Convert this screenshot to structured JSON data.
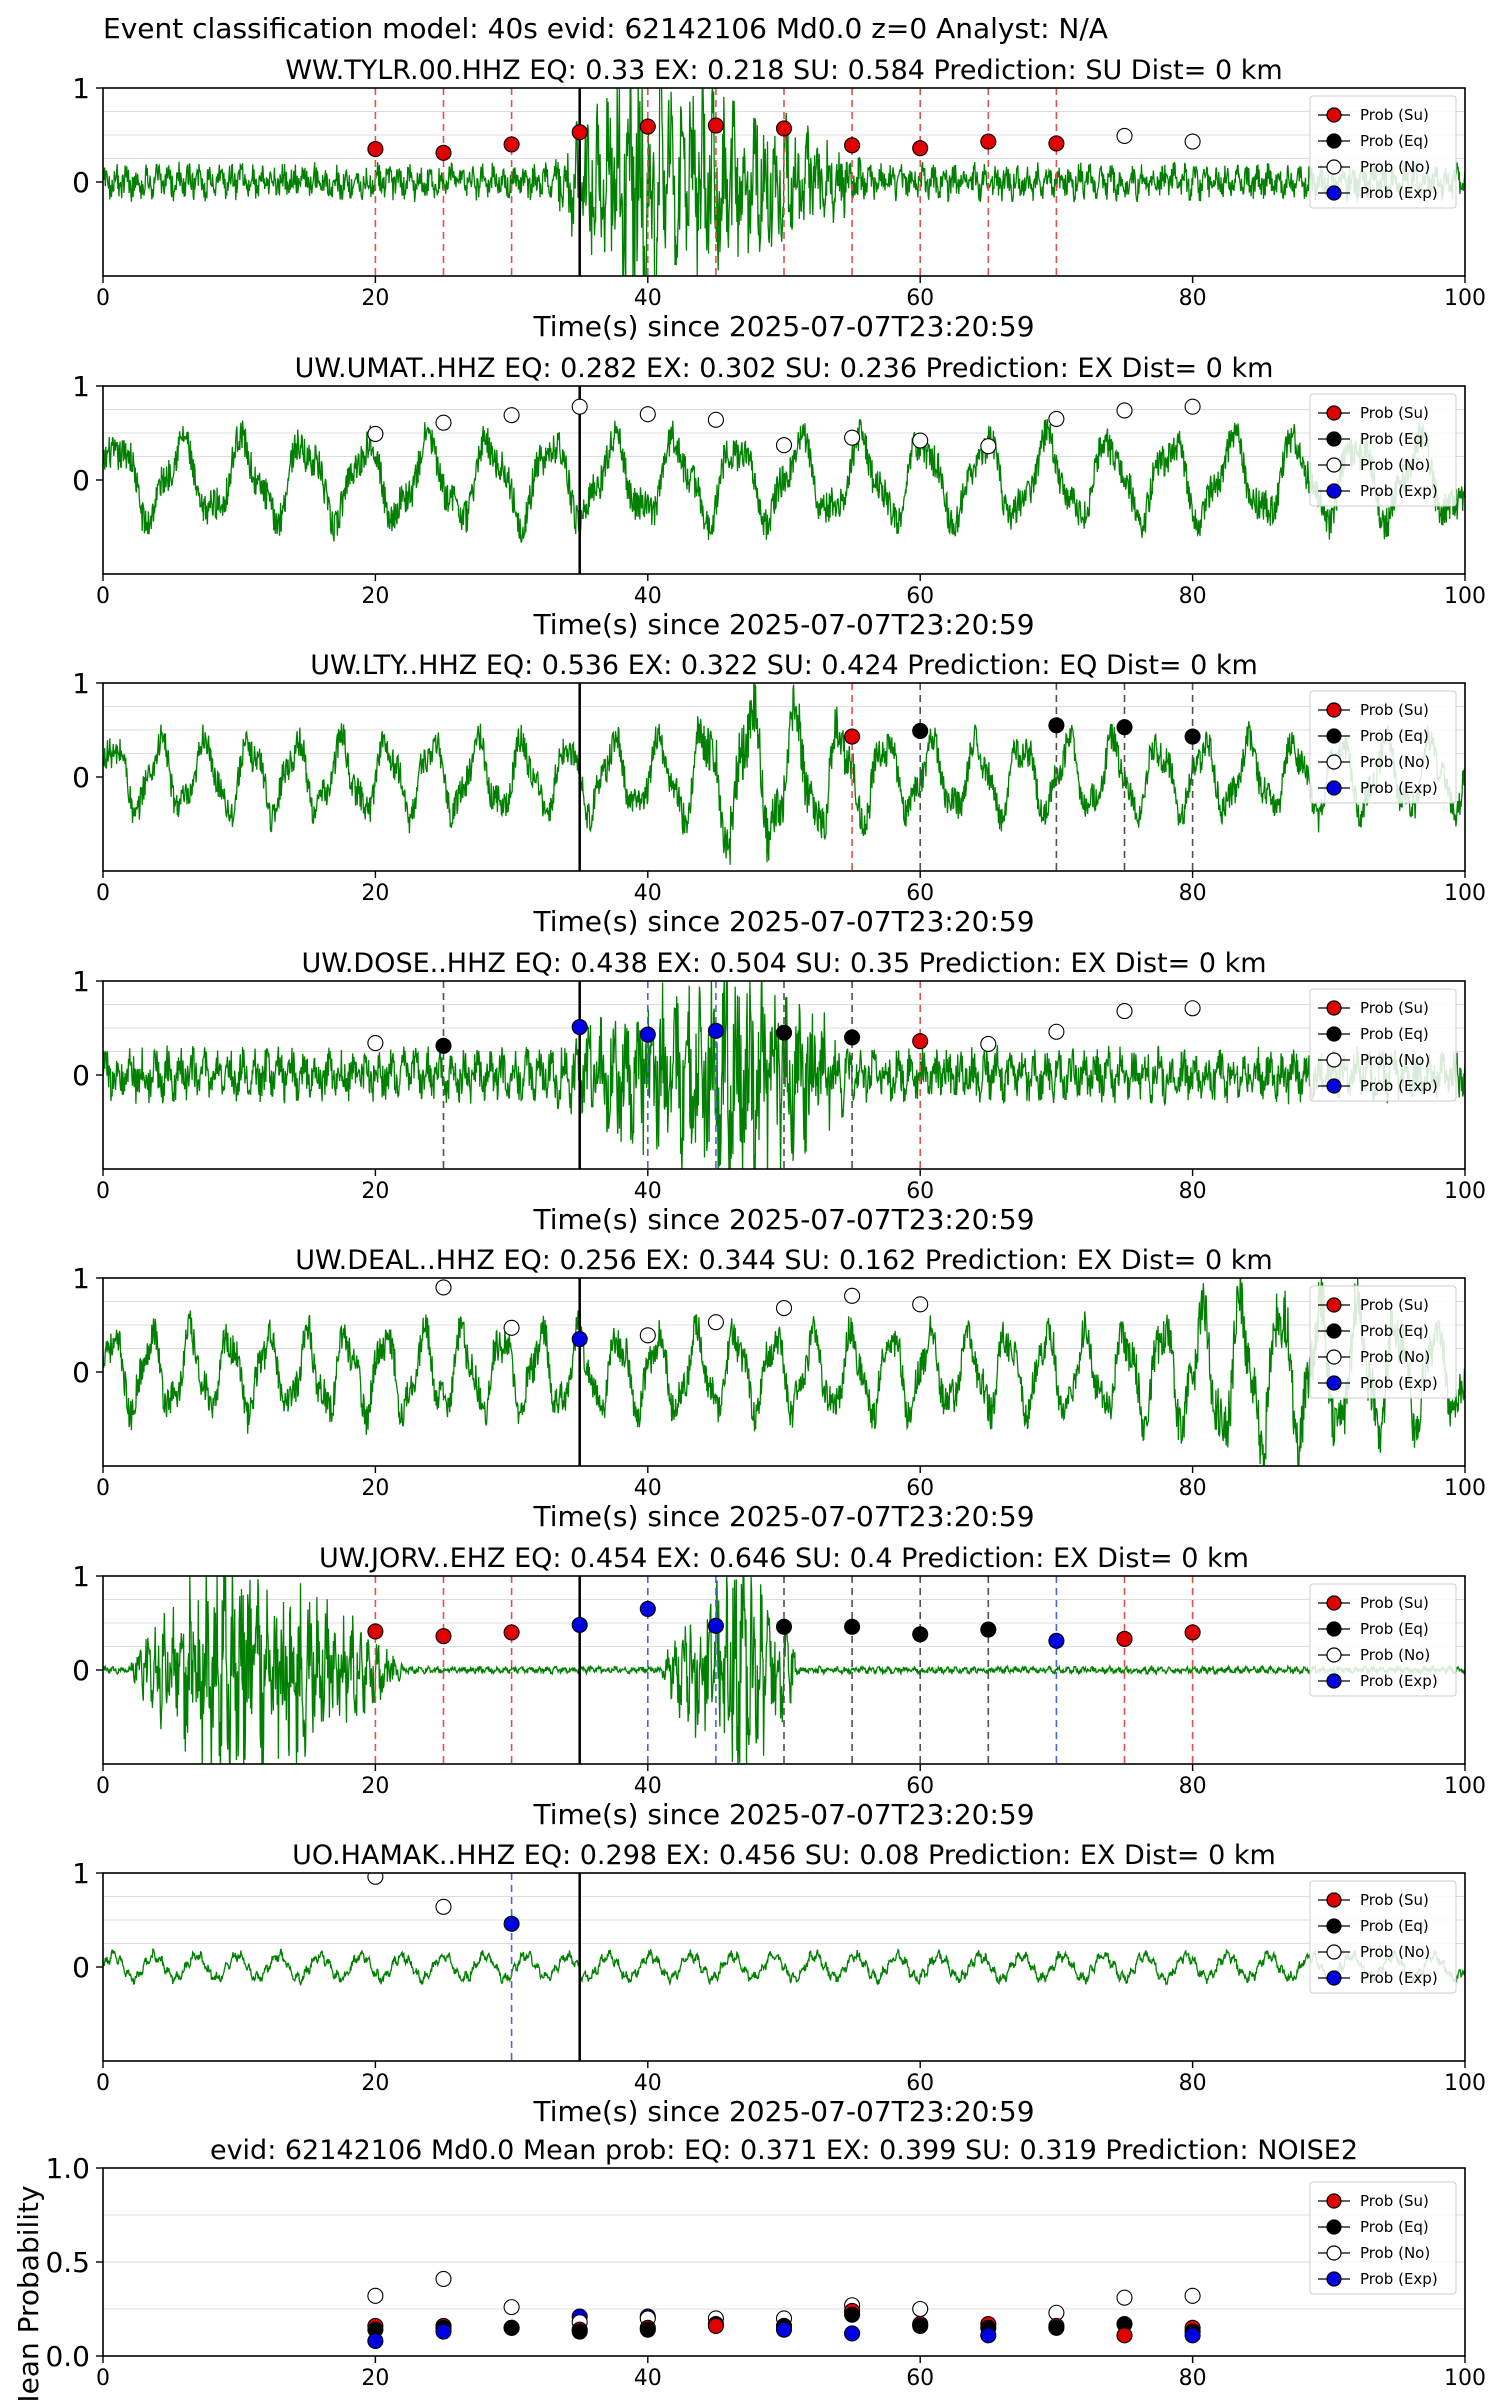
{
  "figure": {
    "suptitle": "Event classification model: 40s evid: 62142106 Md0.0 z=0 Analyst: N/A"
  },
  "chart_data": [
    {
      "type": "line",
      "title": "WW.TYLR.00.HHZ   EQ: 0.33  EX: 0.218  SU: 0.584   Prediction: SU    Dist= 0 km",
      "xlabel": "Time(s) since 2025-07-07T23:20:59",
      "xlim": [
        0,
        100
      ],
      "ylim": [
        -1,
        1
      ],
      "xticks": [
        "0",
        "20",
        "40",
        "60",
        "80",
        "100"
      ],
      "yticks": [
        "0",
        "1"
      ],
      "vline_black": 35,
      "waveform": {
        "color": "#008000",
        "style": "burst",
        "burst_start": 33,
        "burst_peak": 39,
        "burst_end": 56,
        "base_amp": 0.15,
        "peak_amp": 1.0,
        "base_freq": 1.3
      },
      "points": [
        {
          "x": 20,
          "y": 0.35,
          "cls": "Su",
          "vline": true
        },
        {
          "x": 25,
          "y": 0.31,
          "cls": "Su",
          "vline": true
        },
        {
          "x": 30,
          "y": 0.4,
          "cls": "Su",
          "vline": true
        },
        {
          "x": 35,
          "y": 0.53,
          "cls": "Su",
          "vline": false
        },
        {
          "x": 40,
          "y": 0.59,
          "cls": "Su",
          "vline": true
        },
        {
          "x": 45,
          "y": 0.6,
          "cls": "Su",
          "vline": true
        },
        {
          "x": 50,
          "y": 0.57,
          "cls": "Su",
          "vline": true
        },
        {
          "x": 55,
          "y": 0.39,
          "cls": "Su",
          "vline": true
        },
        {
          "x": 60,
          "y": 0.36,
          "cls": "Su",
          "vline": true
        },
        {
          "x": 65,
          "y": 0.43,
          "cls": "Su",
          "vline": true
        },
        {
          "x": 70,
          "y": 0.41,
          "cls": "Su",
          "vline": true
        },
        {
          "x": 75,
          "y": 0.49,
          "cls": "No",
          "vline": false
        },
        {
          "x": 80,
          "y": 0.43,
          "cls": "No",
          "vline": false
        }
      ],
      "legend": [
        "Prob (Su)",
        "Prob (Eq)",
        "Prob (No)",
        "Prob (Exp)"
      ]
    },
    {
      "type": "line",
      "title": "UW.UMAT..HHZ   EQ: 0.282  EX: 0.302  SU: 0.236   Prediction: EX    Dist= 0 km",
      "xlabel": "Time(s) since 2025-07-07T23:20:59",
      "xlim": [
        0,
        100
      ],
      "ylim": [
        -1,
        1
      ],
      "xticks": [
        "0",
        "20",
        "40",
        "60",
        "80",
        "100"
      ],
      "yticks": [
        "0",
        "1"
      ],
      "vline_black": 35,
      "waveform": {
        "color": "#008000",
        "style": "oscillation",
        "base_amp": 0.5,
        "peak_amp": 0.9,
        "base_freq": 0.22
      },
      "points": [
        {
          "x": 20,
          "y": 0.49,
          "cls": "No",
          "vline": false
        },
        {
          "x": 25,
          "y": 0.61,
          "cls": "No",
          "vline": false
        },
        {
          "x": 30,
          "y": 0.69,
          "cls": "No",
          "vline": false
        },
        {
          "x": 35,
          "y": 0.78,
          "cls": "No",
          "vline": false
        },
        {
          "x": 40,
          "y": 0.7,
          "cls": "No",
          "vline": false
        },
        {
          "x": 45,
          "y": 0.64,
          "cls": "No",
          "vline": false
        },
        {
          "x": 50,
          "y": 0.37,
          "cls": "No",
          "vline": false
        },
        {
          "x": 55,
          "y": 0.45,
          "cls": "No",
          "vline": false
        },
        {
          "x": 60,
          "y": 0.42,
          "cls": "No",
          "vline": false
        },
        {
          "x": 65,
          "y": 0.36,
          "cls": "No",
          "vline": false
        },
        {
          "x": 70,
          "y": 0.65,
          "cls": "No",
          "vline": false
        },
        {
          "x": 75,
          "y": 0.74,
          "cls": "No",
          "vline": false
        },
        {
          "x": 80,
          "y": 0.78,
          "cls": "No",
          "vline": false
        }
      ],
      "legend": [
        "Prob (Su)",
        "Prob (Eq)",
        "Prob (No)",
        "Prob (Exp)"
      ]
    },
    {
      "type": "line",
      "title": "UW.LTY..HHZ   EQ: 0.536  EX: 0.322  SU: 0.424   Prediction: EQ    Dist= 0 km",
      "xlabel": "Time(s) since 2025-07-07T23:20:59",
      "xlim": [
        0,
        100
      ],
      "ylim": [
        -1,
        1
      ],
      "xticks": [
        "0",
        "20",
        "40",
        "60",
        "80",
        "100"
      ],
      "yticks": [
        "0",
        "1"
      ],
      "vline_black": 35,
      "waveform": {
        "color": "#008000",
        "style": "oscillation_burst",
        "burst_start": 42,
        "burst_peak": 47,
        "burst_end": 58,
        "base_amp": 0.45,
        "peak_amp": 0.9,
        "base_freq": 0.3
      },
      "points": [
        {
          "x": 55,
          "y": 0.43,
          "cls": "Su",
          "vline": true
        },
        {
          "x": 60,
          "y": 0.49,
          "cls": "Eq",
          "vline": true
        },
        {
          "x": 70,
          "y": 0.55,
          "cls": "Eq",
          "vline": true
        },
        {
          "x": 75,
          "y": 0.53,
          "cls": "Eq",
          "vline": true
        },
        {
          "x": 80,
          "y": 0.43,
          "cls": "Eq",
          "vline": true
        }
      ],
      "legend": [
        "Prob (Su)",
        "Prob (Eq)",
        "Prob (No)",
        "Prob (Exp)"
      ]
    },
    {
      "type": "line",
      "title": "UW.DOSE..HHZ   EQ: 0.438  EX: 0.504  SU: 0.35   Prediction: EX    Dist= 0 km",
      "xlabel": "Time(s) since 2025-07-07T23:20:59",
      "xlim": [
        0,
        100
      ],
      "ylim": [
        -1,
        1
      ],
      "xticks": [
        "0",
        "20",
        "40",
        "60",
        "80",
        "100"
      ],
      "yticks": [
        "0",
        "1"
      ],
      "vline_black": 35,
      "waveform": {
        "color": "#008000",
        "style": "burst",
        "burst_start": 33,
        "burst_peak": 47,
        "burst_end": 55,
        "base_amp": 0.22,
        "peak_amp": 0.95,
        "base_freq": 1.1
      },
      "points": [
        {
          "x": 20,
          "y": 0.34,
          "cls": "No",
          "vline": false
        },
        {
          "x": 25,
          "y": 0.31,
          "cls": "Eq",
          "vline": true
        },
        {
          "x": 35,
          "y": 0.51,
          "cls": "Exp",
          "vline": false
        },
        {
          "x": 40,
          "y": 0.43,
          "cls": "Exp",
          "vline": true
        },
        {
          "x": 45,
          "y": 0.47,
          "cls": "Exp",
          "vline": true
        },
        {
          "x": 50,
          "y": 0.45,
          "cls": "Eq",
          "vline": true
        },
        {
          "x": 55,
          "y": 0.4,
          "cls": "Eq",
          "vline": true
        },
        {
          "x": 60,
          "y": 0.36,
          "cls": "Su",
          "vline": true
        },
        {
          "x": 65,
          "y": 0.33,
          "cls": "No",
          "vline": false
        },
        {
          "x": 70,
          "y": 0.46,
          "cls": "No",
          "vline": false
        },
        {
          "x": 75,
          "y": 0.68,
          "cls": "No",
          "vline": false
        },
        {
          "x": 80,
          "y": 0.71,
          "cls": "No",
          "vline": false
        }
      ],
      "legend": [
        "Prob (Su)",
        "Prob (Eq)",
        "Prob (No)",
        "Prob (Exp)"
      ]
    },
    {
      "type": "line",
      "title": "UW.DEAL..HHZ   EQ: 0.256  EX: 0.344  SU: 0.162   Prediction: EX    Dist= 0 km",
      "xlabel": "Time(s) since 2025-07-07T23:20:59",
      "xlim": [
        0,
        100
      ],
      "ylim": [
        -1,
        1
      ],
      "xticks": [
        "0",
        "20",
        "40",
        "60",
        "80",
        "100"
      ],
      "yticks": [
        "0",
        "1"
      ],
      "vline_black": 35,
      "waveform": {
        "color": "#008000",
        "style": "oscillation_rising",
        "burst_start": 75,
        "burst_peak": 86,
        "burst_end": 100,
        "base_amp": 0.5,
        "peak_amp": 0.95,
        "base_freq": 0.35
      },
      "points": [
        {
          "x": 25,
          "y": 0.9,
          "cls": "No",
          "vline": false
        },
        {
          "x": 30,
          "y": 0.47,
          "cls": "No",
          "vline": false
        },
        {
          "x": 35,
          "y": 0.35,
          "cls": "Exp",
          "vline": false
        },
        {
          "x": 40,
          "y": 0.39,
          "cls": "No",
          "vline": false
        },
        {
          "x": 45,
          "y": 0.53,
          "cls": "No",
          "vline": false
        },
        {
          "x": 50,
          "y": 0.68,
          "cls": "No",
          "vline": false
        },
        {
          "x": 55,
          "y": 0.81,
          "cls": "No",
          "vline": false
        },
        {
          "x": 60,
          "y": 0.72,
          "cls": "No",
          "vline": false
        }
      ],
      "legend": [
        "Prob (Su)",
        "Prob (Eq)",
        "Prob (No)",
        "Prob (Exp)"
      ]
    },
    {
      "type": "line",
      "title": "UW.JORV..EHZ   EQ: 0.454  EX: 0.646  SU: 0.4   Prediction: EX    Dist= 0 km",
      "xlabel": "Time(s) since 2025-07-07T23:20:59",
      "xlim": [
        0,
        100
      ],
      "ylim": [
        -1,
        1
      ],
      "xticks": [
        "0",
        "20",
        "40",
        "60",
        "80",
        "100"
      ],
      "yticks": [
        "0",
        "1"
      ],
      "vline_black": 35,
      "waveform": {
        "color": "#008000",
        "style": "two_bursts",
        "bursts": [
          [
            2,
            9,
            22
          ],
          [
            41,
            47,
            51
          ]
        ],
        "base_amp": 0.03,
        "peak_amp": 1.0,
        "base_freq": 1.6
      },
      "points": [
        {
          "x": 20,
          "y": 0.41,
          "cls": "Su",
          "vline": true
        },
        {
          "x": 25,
          "y": 0.36,
          "cls": "Su",
          "vline": true
        },
        {
          "x": 30,
          "y": 0.4,
          "cls": "Su",
          "vline": true
        },
        {
          "x": 35,
          "y": 0.48,
          "cls": "Exp",
          "vline": false
        },
        {
          "x": 40,
          "y": 0.65,
          "cls": "Exp",
          "vline": true
        },
        {
          "x": 45,
          "y": 0.47,
          "cls": "Exp",
          "vline": true
        },
        {
          "x": 50,
          "y": 0.46,
          "cls": "Eq",
          "vline": true
        },
        {
          "x": 55,
          "y": 0.46,
          "cls": "Eq",
          "vline": true
        },
        {
          "x": 60,
          "y": 0.38,
          "cls": "Eq",
          "vline": true
        },
        {
          "x": 65,
          "y": 0.43,
          "cls": "Eq",
          "vline": true
        },
        {
          "x": 70,
          "y": 0.31,
          "cls": "Exp",
          "vline": true
        },
        {
          "x": 75,
          "y": 0.33,
          "cls": "Su",
          "vline": true
        },
        {
          "x": 80,
          "y": 0.4,
          "cls": "Su",
          "vline": true
        }
      ],
      "legend": [
        "Prob (Su)",
        "Prob (Eq)",
        "Prob (No)",
        "Prob (Exp)"
      ]
    },
    {
      "type": "line",
      "title": "UO.HAMAK..HHZ   EQ: 0.298  EX: 0.456  SU: 0.08   Prediction: EX    Dist= 0 km",
      "xlabel": "Time(s) since 2025-07-07T23:20:59",
      "xlim": [
        0,
        100
      ],
      "ylim": [
        -1,
        1
      ],
      "xticks": [
        "0",
        "20",
        "40",
        "60",
        "80",
        "100"
      ],
      "yticks": [
        "0",
        "1"
      ],
      "vline_black": 35,
      "waveform": {
        "color": "#008000",
        "style": "small_oscillation",
        "base_amp": 0.15,
        "peak_amp": 0.2,
        "base_freq": 0.33
      },
      "points": [
        {
          "x": 20,
          "y": 0.96,
          "cls": "No",
          "vline": false
        },
        {
          "x": 25,
          "y": 0.64,
          "cls": "No",
          "vline": false
        },
        {
          "x": 30,
          "y": 0.46,
          "cls": "Exp",
          "vline": true
        }
      ],
      "legend": [
        "Prob (Su)",
        "Prob (Eq)",
        "Prob (No)",
        "Prob (Exp)"
      ]
    },
    {
      "type": "scatter",
      "title": "evid: 62142106  Md0.0   Mean prob:   EQ: 0.371  EX: 0.399  SU: 0.319   Prediction: NOISE2",
      "xlabel": "",
      "ylabel": "Mean Probability",
      "xlim": [
        0,
        100
      ],
      "ylim": [
        0,
        1
      ],
      "xticks": [
        "0",
        "20",
        "40",
        "60",
        "80",
        "100"
      ],
      "yticks": [
        "0.0",
        "0.5",
        "1.0"
      ],
      "points": [
        {
          "x": 20,
          "y": 0.32,
          "cls": "No"
        },
        {
          "x": 20,
          "y": 0.16,
          "cls": "Su"
        },
        {
          "x": 20,
          "y": 0.14,
          "cls": "Eq"
        },
        {
          "x": 20,
          "y": 0.08,
          "cls": "Exp"
        },
        {
          "x": 25,
          "y": 0.41,
          "cls": "No"
        },
        {
          "x": 25,
          "y": 0.16,
          "cls": "Su"
        },
        {
          "x": 25,
          "y": 0.15,
          "cls": "Eq"
        },
        {
          "x": 25,
          "y": 0.13,
          "cls": "Exp"
        },
        {
          "x": 30,
          "y": 0.26,
          "cls": "No"
        },
        {
          "x": 30,
          "y": 0.15,
          "cls": "Su"
        },
        {
          "x": 30,
          "y": 0.15,
          "cls": "Eq"
        },
        {
          "x": 35,
          "y": 0.21,
          "cls": "Exp"
        },
        {
          "x": 35,
          "y": 0.18,
          "cls": "No"
        },
        {
          "x": 35,
          "y": 0.14,
          "cls": "Su"
        },
        {
          "x": 35,
          "y": 0.13,
          "cls": "Eq"
        },
        {
          "x": 40,
          "y": 0.21,
          "cls": "Exp"
        },
        {
          "x": 40,
          "y": 0.2,
          "cls": "No"
        },
        {
          "x": 40,
          "y": 0.15,
          "cls": "Su"
        },
        {
          "x": 40,
          "y": 0.14,
          "cls": "Eq"
        },
        {
          "x": 45,
          "y": 0.2,
          "cls": "No"
        },
        {
          "x": 45,
          "y": 0.17,
          "cls": "Eq"
        },
        {
          "x": 45,
          "y": 0.16,
          "cls": "Su"
        },
        {
          "x": 50,
          "y": 0.2,
          "cls": "No"
        },
        {
          "x": 50,
          "y": 0.16,
          "cls": "Eq"
        },
        {
          "x": 50,
          "y": 0.14,
          "cls": "Exp"
        },
        {
          "x": 55,
          "y": 0.27,
          "cls": "No"
        },
        {
          "x": 55,
          "y": 0.24,
          "cls": "Su"
        },
        {
          "x": 55,
          "y": 0.22,
          "cls": "Eq"
        },
        {
          "x": 55,
          "y": 0.12,
          "cls": "Exp"
        },
        {
          "x": 60,
          "y": 0.25,
          "cls": "No"
        },
        {
          "x": 60,
          "y": 0.17,
          "cls": "Su"
        },
        {
          "x": 60,
          "y": 0.16,
          "cls": "Eq"
        },
        {
          "x": 65,
          "y": 0.17,
          "cls": "Su"
        },
        {
          "x": 65,
          "y": 0.15,
          "cls": "Eq"
        },
        {
          "x": 65,
          "y": 0.11,
          "cls": "Exp"
        },
        {
          "x": 70,
          "y": 0.23,
          "cls": "No"
        },
        {
          "x": 70,
          "y": 0.16,
          "cls": "Su"
        },
        {
          "x": 70,
          "y": 0.15,
          "cls": "Eq"
        },
        {
          "x": 75,
          "y": 0.31,
          "cls": "No"
        },
        {
          "x": 75,
          "y": 0.17,
          "cls": "Eq"
        },
        {
          "x": 75,
          "y": 0.11,
          "cls": "Su"
        },
        {
          "x": 80,
          "y": 0.32,
          "cls": "No"
        },
        {
          "x": 80,
          "y": 0.15,
          "cls": "Su"
        },
        {
          "x": 80,
          "y": 0.13,
          "cls": "Eq"
        },
        {
          "x": 80,
          "y": 0.11,
          "cls": "Exp"
        }
      ],
      "legend": [
        "Prob (Su)",
        "Prob (Eq)",
        "Prob (No)",
        "Prob (Exp)"
      ]
    }
  ],
  "colors": {
    "Su": "#e00000",
    "Eq": "#000000",
    "No": "#ffffff",
    "Exp": "#0000e0",
    "waveform": "#008000",
    "vline_Su": "#e05050",
    "vline_Eq": "#505050",
    "vline_Exp": "#5060e0"
  },
  "icons": {
    "Su": "filled-red-circle",
    "Eq": "filled-black-circle",
    "No": "hollow-circle",
    "Exp": "filled-blue-circle"
  }
}
